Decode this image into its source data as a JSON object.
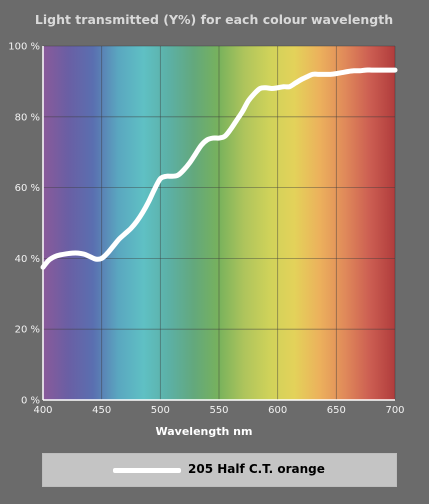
{
  "chart_data": {
    "type": "line",
    "title": "Light transmitted (Y%) for each colour wavelength",
    "xlabel": "Wavelength nm",
    "ylabel": "",
    "xlim": [
      400,
      700
    ],
    "ylim": [
      0,
      100
    ],
    "x_ticks": [
      "400",
      "450",
      "500",
      "550",
      "600",
      "650",
      "700"
    ],
    "y_ticks": [
      "0 %",
      "20 %",
      "40 %",
      "60 %",
      "80 %",
      "100 %"
    ],
    "grid": true,
    "legend_position": "bottom",
    "series": [
      {
        "name": "205 Half C.T. orange",
        "color": "#ffffff",
        "x": [
          400,
          405,
          410,
          415,
          420,
          425,
          430,
          435,
          440,
          445,
          450,
          455,
          460,
          465,
          470,
          475,
          480,
          485,
          490,
          495,
          500,
          505,
          510,
          515,
          520,
          525,
          530,
          535,
          540,
          545,
          550,
          555,
          560,
          565,
          570,
          575,
          580,
          585,
          590,
          595,
          600,
          605,
          610,
          615,
          620,
          625,
          630,
          635,
          640,
          645,
          650,
          655,
          660,
          665,
          670,
          675,
          680,
          685,
          690,
          695,
          700
        ],
        "values": [
          37.5,
          39.5,
          40.5,
          41,
          41.3,
          41.5,
          41.5,
          41.2,
          40.5,
          39.8,
          40,
          41.5,
          43.5,
          45.5,
          47,
          48.5,
          50.5,
          53,
          56,
          59.5,
          62.5,
          63.2,
          63.2,
          63.5,
          65,
          67,
          69.5,
          72,
          73.5,
          74,
          74,
          74.5,
          76.5,
          79,
          81.5,
          84.5,
          86.5,
          88,
          88.2,
          88,
          88.2,
          88.5,
          88.5,
          89.5,
          90.5,
          91.3,
          92,
          92,
          92,
          92,
          92.2,
          92.5,
          92.8,
          93,
          93,
          93.2,
          93.2,
          93.2,
          93.2,
          93.2,
          93.2
        ]
      }
    ],
    "spectrum_colors": [
      "#8a5a9a",
      "#6a5fa4",
      "#5a6fb0",
      "#5aa7c0",
      "#5fc0c4",
      "#5cb0a6",
      "#63a87c",
      "#78b25c",
      "#aec45c",
      "#cfd25a",
      "#e3d25a",
      "#ecb15c",
      "#e08a5a",
      "#cc5e52",
      "#b03c3c"
    ]
  }
}
